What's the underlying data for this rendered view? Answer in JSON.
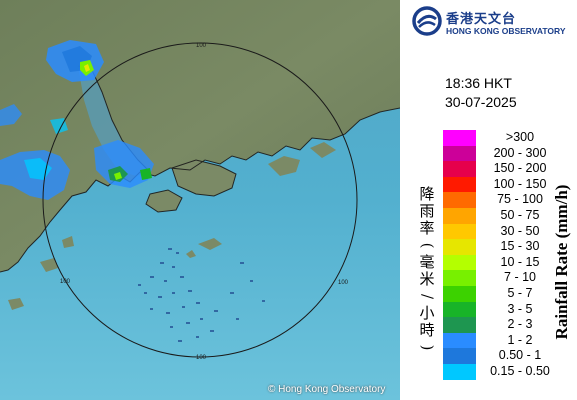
{
  "logo": {
    "name_cn": "香港天文台",
    "name_en": "HONG KONG OBSERVATORY",
    "brand_color": "#1b3e8a"
  },
  "timestamp": {
    "time": "18:36 HKT",
    "date": "30-07-2025"
  },
  "legend": {
    "title_cn": "降雨率(毫米/小時)",
    "title_en": "Rainfall Rate (mm/h)",
    "items": [
      {
        "label": ">300",
        "color": "#ff00ff"
      },
      {
        "label": "200 - 300",
        "color": "#cc0099"
      },
      {
        "label": "150 - 200",
        "color": "#e6004c"
      },
      {
        "label": "100 - 150",
        "color": "#ff1a00"
      },
      {
        "label": "75 - 100",
        "color": "#ff6a00"
      },
      {
        "label": "50 - 75",
        "color": "#ffa500"
      },
      {
        "label": "30 - 50",
        "color": "#ffc800"
      },
      {
        "label": "15 - 30",
        "color": "#e6e600"
      },
      {
        "label": "10 - 15",
        "color": "#b4ff00"
      },
      {
        "label": "7 - 10",
        "color": "#78f000"
      },
      {
        "label": "5 - 7",
        "color": "#3cd200"
      },
      {
        "label": "3 - 5",
        "color": "#18b428"
      },
      {
        "label": "2 - 3",
        "color": "#1e9650"
      },
      {
        "label": "1 - 2",
        "color": "#2a8cff"
      },
      {
        "label": "0.50 - 1",
        "color": "#1e78dc"
      },
      {
        "label": "0.15 - 0.50",
        "color": "#00c8ff"
      }
    ]
  },
  "map": {
    "range_labels": [
      "100",
      "100",
      "100",
      "100"
    ],
    "copyright": "© Hong Kong Observatory"
  }
}
